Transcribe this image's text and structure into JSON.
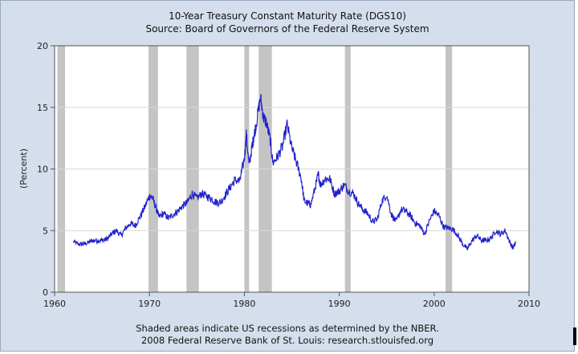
{
  "chart_data": {
    "type": "line",
    "title": "10-Year Treasury Constant Maturity Rate (DGS10)",
    "subtitle": "Source: Board of Governors of the Federal Reserve System",
    "xlabel": "",
    "ylabel": "(Percent)",
    "xlim": [
      1960,
      2010
    ],
    "ylim": [
      0,
      20
    ],
    "x_ticks": [
      "1960",
      "1970",
      "1980",
      "1990",
      "2000",
      "2010"
    ],
    "y_ticks": [
      "0",
      "5",
      "10",
      "15",
      "20"
    ],
    "grid": "horizontal",
    "line_color": "#2222cc",
    "recession_color": "#c4c4c4",
    "recessions": [
      [
        1960.3,
        1961.1
      ],
      [
        1969.9,
        1970.9
      ],
      [
        1973.9,
        1975.2
      ],
      [
        1980.0,
        1980.5
      ],
      [
        1981.5,
        1982.9
      ],
      [
        1990.6,
        1991.2
      ],
      [
        2001.2,
        2001.9
      ]
    ],
    "series": [
      {
        "x": [
          1962.0,
          1962.5,
          1963.0,
          1963.5,
          1964.0,
          1964.5,
          1965.0,
          1965.5,
          1966.0,
          1966.5,
          1967.0,
          1967.5,
          1968.0,
          1968.5,
          1969.0,
          1969.5,
          1970.0,
          1970.3,
          1970.7,
          1971.0,
          1971.5,
          1972.0,
          1972.5,
          1973.0,
          1973.5,
          1974.0,
          1974.5,
          1975.0,
          1975.5,
          1976.0,
          1976.5,
          1977.0,
          1977.5,
          1978.0,
          1978.5,
          1979.0,
          1979.5,
          1980.0,
          1980.2,
          1980.5,
          1980.8,
          1981.0,
          1981.3,
          1981.7,
          1982.0,
          1982.3,
          1982.7,
          1983.0,
          1983.5,
          1984.0,
          1984.5,
          1985.0,
          1985.5,
          1986.0,
          1986.3,
          1986.7,
          1987.0,
          1987.5,
          1987.8,
          1988.0,
          1988.5,
          1989.0,
          1989.5,
          1990.0,
          1990.5,
          1991.0,
          1991.5,
          1992.0,
          1992.5,
          1993.0,
          1993.5,
          1994.0,
          1994.5,
          1995.0,
          1995.5,
          1996.0,
          1996.5,
          1997.0,
          1997.5,
          1998.0,
          1998.5,
          1999.0,
          1999.5,
          2000.0,
          2000.5,
          2001.0,
          2001.5,
          2002.0,
          2002.5,
          2003.0,
          2003.5,
          2004.0,
          2004.5,
          2005.0,
          2005.5,
          2006.0,
          2006.5,
          2007.0,
          2007.5,
          2008.0,
          2008.3,
          2008.6
        ],
        "y": [
          4.1,
          3.9,
          3.9,
          4.0,
          4.2,
          4.2,
          4.2,
          4.3,
          4.7,
          5.0,
          4.6,
          5.2,
          5.6,
          5.4,
          6.1,
          6.9,
          7.8,
          7.7,
          6.8,
          6.1,
          6.4,
          6.0,
          6.3,
          6.6,
          7.0,
          7.3,
          8.0,
          7.6,
          8.0,
          7.8,
          7.6,
          7.3,
          7.3,
          7.9,
          8.5,
          9.1,
          9.0,
          10.8,
          12.8,
          10.3,
          11.8,
          12.6,
          13.9,
          15.8,
          14.2,
          13.8,
          12.5,
          10.5,
          11.0,
          11.8,
          13.6,
          11.7,
          10.5,
          9.2,
          7.4,
          7.2,
          7.1,
          8.6,
          9.6,
          8.7,
          9.2,
          9.2,
          8.0,
          8.2,
          8.7,
          8.2,
          8.0,
          7.2,
          6.7,
          6.4,
          5.7,
          5.9,
          7.4,
          7.9,
          6.3,
          5.7,
          6.7,
          6.6,
          6.2,
          5.6,
          5.4,
          4.7,
          5.8,
          6.6,
          6.2,
          5.3,
          5.2,
          5.1,
          4.6,
          3.9,
          3.5,
          4.2,
          4.6,
          4.2,
          4.2,
          4.4,
          5.0,
          4.7,
          5.0,
          4.0,
          3.6,
          4.0
        ]
      }
    ],
    "footnotes": [
      "Shaded areas indicate US recessions as determined by the NBER.",
      "2008 Federal Reserve Bank of St. Louis: research.stlouisfed.org"
    ]
  }
}
